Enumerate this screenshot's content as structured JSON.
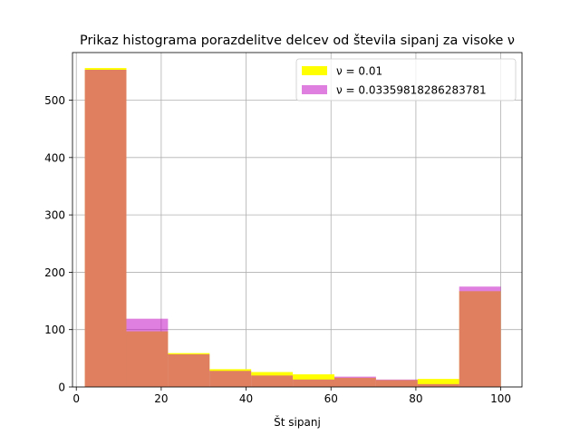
{
  "chart_data": {
    "type": "bar",
    "title": "Prikaz histograma porazdelitve delcev od števila sipanj za visoke ν",
    "xlabel": "Št sipanj",
    "ylabel": "",
    "xlim": [
      -0.9,
      105.0
    ],
    "ylim": [
      0,
      583
    ],
    "xticks": [
      0,
      20,
      40,
      60,
      80,
      100
    ],
    "yticks": [
      0,
      100,
      200,
      300,
      400,
      500
    ],
    "grid": true,
    "legend_position": "top-right",
    "bin_edges": [
      2,
      11.8,
      21.6,
      31.4,
      41.2,
      51,
      60.8,
      70.6,
      80.4,
      90.2,
      100
    ],
    "series": [
      {
        "name": "ν = 0.01",
        "color": "#ffff00",
        "values": [
          556,
          97,
          59,
          31,
          26,
          22,
          16,
          12,
          14,
          167
        ]
      },
      {
        "name": "ν = 0.03359818286283781",
        "color": "#bf00bf",
        "opacity": 0.5,
        "values": [
          553,
          119,
          57,
          28,
          20,
          13,
          18,
          13,
          5,
          175
        ]
      }
    ]
  }
}
